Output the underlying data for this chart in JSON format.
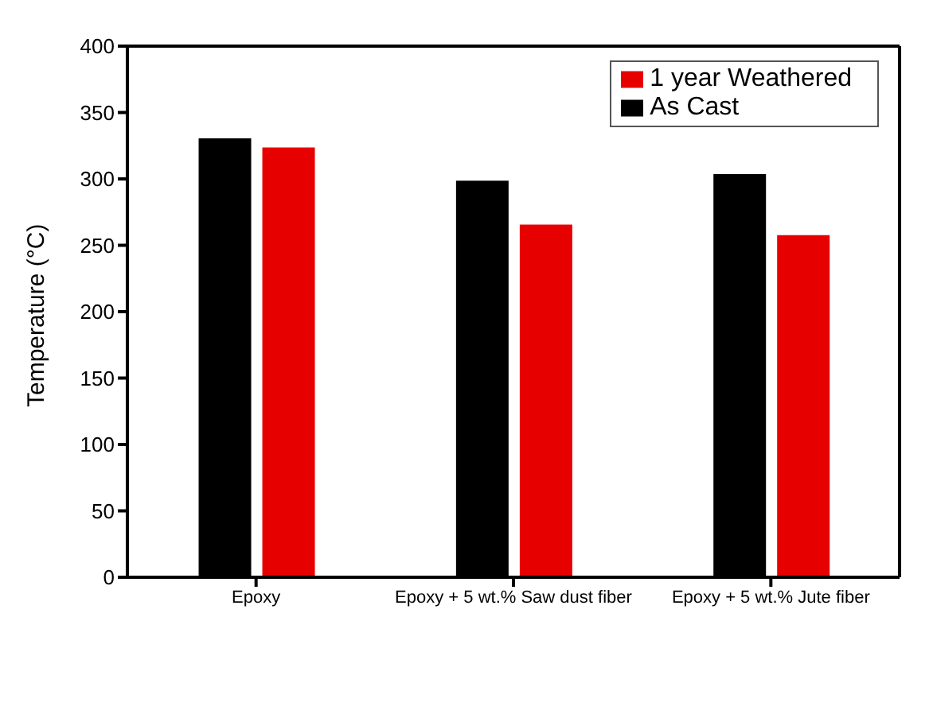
{
  "chart_data": {
    "type": "bar",
    "ylabel": "Temperature (°C)",
    "categories": [
      "Epoxy",
      "Epoxy + 5 wt.% Saw dust fiber",
      "Epoxy + 5 wt.% Jute fiber"
    ],
    "series": [
      {
        "name": "As Cast",
        "color": "#000000",
        "values": [
          330,
          298,
          303
        ]
      },
      {
        "name": "1 year Weathered",
        "color": "#e60000",
        "values": [
          323,
          265,
          257
        ]
      }
    ],
    "ylim": [
      0,
      400
    ],
    "yticks": [
      0,
      50,
      100,
      150,
      200,
      250,
      300,
      350,
      400
    ],
    "grid": false,
    "legend": "top right"
  }
}
